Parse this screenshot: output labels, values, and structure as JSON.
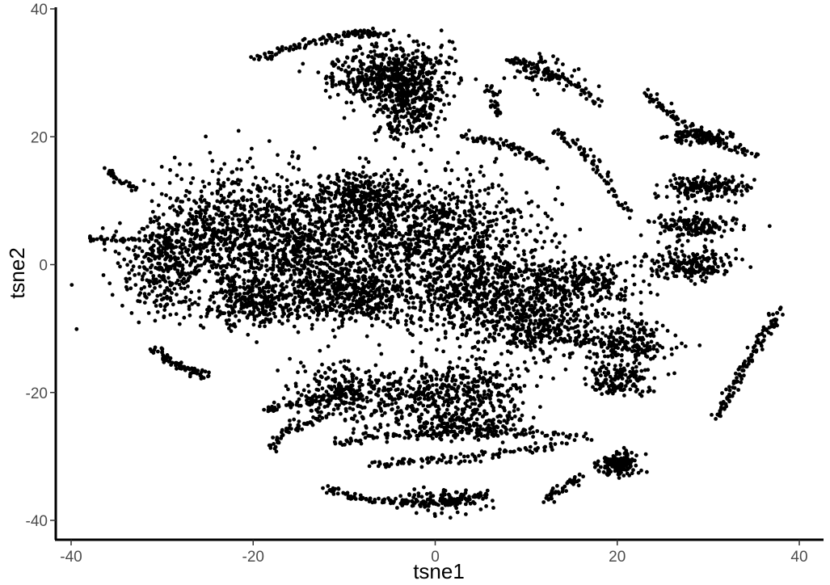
{
  "chart_data": {
    "type": "scatter",
    "title": "",
    "xlabel": "tsne1",
    "ylabel": "tsne2",
    "xlim": [
      -42,
      42
    ],
    "ylim": [
      -43,
      40
    ],
    "xticks": [
      -40,
      -20,
      0,
      20,
      40
    ],
    "yticks": [
      -40,
      -20,
      0,
      20,
      40
    ],
    "xtick_labels": [
      "-40",
      "-20",
      "0",
      "20",
      "40"
    ],
    "ytick_labels": [
      "-40",
      "-20",
      "0",
      "20",
      "40"
    ],
    "grid": false,
    "legend": "none",
    "point_color": "#000000",
    "clusters": [
      {
        "center": [
          -15,
          3
        ],
        "spread": [
          8,
          9
        ],
        "count": 900
      },
      {
        "center": [
          -24,
          5
        ],
        "spread": [
          6,
          8
        ],
        "count": 500
      },
      {
        "center": [
          -30,
          0
        ],
        "spread": [
          4,
          6
        ],
        "count": 300
      },
      {
        "center": [
          -10,
          -5
        ],
        "spread": [
          6,
          4
        ],
        "count": 400
      },
      {
        "center": [
          -20,
          -6
        ],
        "spread": [
          5,
          3
        ],
        "count": 250
      },
      {
        "center": [
          -5,
          30
        ],
        "spread": [
          5,
          4
        ],
        "count": 500
      },
      {
        "center": [
          -3,
          25
        ],
        "spread": [
          3,
          5
        ],
        "count": 300
      },
      {
        "center": [
          0,
          5
        ],
        "spread": [
          10,
          7
        ],
        "count": 900
      },
      {
        "center": [
          5,
          -5
        ],
        "spread": [
          9,
          6
        ],
        "count": 700
      },
      {
        "center": [
          2,
          -20
        ],
        "spread": [
          7,
          4
        ],
        "count": 400
      },
      {
        "center": [
          -10,
          -20
        ],
        "spread": [
          5,
          4
        ],
        "count": 250
      },
      {
        "center": [
          12,
          -10
        ],
        "spread": [
          6,
          4
        ],
        "count": 300
      },
      {
        "center": [
          15,
          -3
        ],
        "spread": [
          6,
          3
        ],
        "count": 250
      },
      {
        "center": [
          22,
          -12
        ],
        "spread": [
          4,
          3
        ],
        "count": 150
      },
      {
        "center": [
          28,
          0
        ],
        "spread": [
          4,
          2
        ],
        "count": 200
      },
      {
        "center": [
          28,
          6
        ],
        "spread": [
          4,
          1.5
        ],
        "count": 150
      },
      {
        "center": [
          30,
          12
        ],
        "spread": [
          4,
          1.5
        ],
        "count": 180
      },
      {
        "center": [
          29,
          20
        ],
        "spread": [
          3,
          1
        ],
        "count": 100
      },
      {
        "center": [
          20,
          -31
        ],
        "spread": [
          2,
          1.5
        ],
        "count": 150
      },
      {
        "center": [
          20,
          -18
        ],
        "spread": [
          3,
          2
        ],
        "count": 150
      },
      {
        "center": [
          3,
          -25
        ],
        "spread": [
          6,
          2
        ],
        "count": 200
      },
      {
        "center": [
          1,
          -37
        ],
        "spread": [
          4,
          1.5
        ],
        "count": 100
      },
      {
        "center": [
          12,
          30
        ],
        "spread": [
          3,
          2
        ],
        "count": 60
      },
      {
        "center": [
          -8,
          10
        ],
        "spread": [
          5,
          4
        ],
        "count": 300
      }
    ],
    "arcs": [
      {
        "from": [
          -12,
          -35
        ],
        "via": [
          -5,
          -39
        ],
        "to": [
          6,
          -36
        ],
        "count": 120
      },
      {
        "from": [
          -7,
          -31
        ],
        "via": [
          3,
          -31
        ],
        "to": [
          14,
          -28
        ],
        "count": 100
      },
      {
        "from": [
          -11,
          -28
        ],
        "via": [
          0,
          -25
        ],
        "to": [
          17,
          -27
        ],
        "count": 110
      },
      {
        "from": [
          -19,
          -23
        ],
        "via": [
          -14,
          -21
        ],
        "to": [
          -8,
          -20
        ],
        "count": 70
      },
      {
        "from": [
          -31,
          -13
        ],
        "via": [
          -28,
          -17
        ],
        "to": [
          -25,
          -17
        ],
        "count": 70
      },
      {
        "from": [
          -18,
          -29
        ],
        "via": [
          -17,
          -25
        ],
        "to": [
          -12,
          -24
        ],
        "count": 50
      },
      {
        "from": [
          31,
          -24
        ],
        "via": [
          34,
          -15
        ],
        "to": [
          38,
          -7
        ],
        "count": 120
      },
      {
        "from": [
          23,
          27
        ],
        "via": [
          27,
          21
        ],
        "to": [
          35,
          17
        ],
        "count": 90
      },
      {
        "from": [
          8,
          32
        ],
        "via": [
          13,
          31
        ],
        "to": [
          18,
          25
        ],
        "count": 80
      },
      {
        "from": [
          13,
          21
        ],
        "via": [
          18,
          17
        ],
        "to": [
          21,
          8
        ],
        "count": 70
      },
      {
        "from": [
          3,
          20
        ],
        "via": [
          8,
          19
        ],
        "to": [
          12,
          16
        ],
        "count": 60
      },
      {
        "from": [
          -20,
          32
        ],
        "via": [
          -10,
          37
        ],
        "to": [
          -6,
          36
        ],
        "count": 120
      },
      {
        "from": [
          12,
          -37
        ],
        "via": [
          14,
          -35
        ],
        "to": [
          16,
          -33
        ],
        "count": 40
      },
      {
        "from": [
          14,
          -12
        ],
        "via": [
          19,
          -12
        ],
        "to": [
          23,
          -13
        ],
        "count": 50
      },
      {
        "from": [
          -38,
          4
        ],
        "via": [
          -36,
          4
        ],
        "to": [
          -33,
          4
        ],
        "count": 30
      },
      {
        "from": [
          -12,
          29
        ],
        "via": [
          -10,
          28
        ],
        "to": [
          -8,
          27
        ],
        "count": 30
      },
      {
        "from": [
          6,
          28
        ],
        "via": [
          6.5,
          26
        ],
        "to": [
          7,
          23
        ],
        "count": 30
      },
      {
        "from": [
          -36,
          15
        ],
        "via": [
          -35,
          13
        ],
        "to": [
          -33,
          12
        ],
        "count": 30
      }
    ]
  }
}
